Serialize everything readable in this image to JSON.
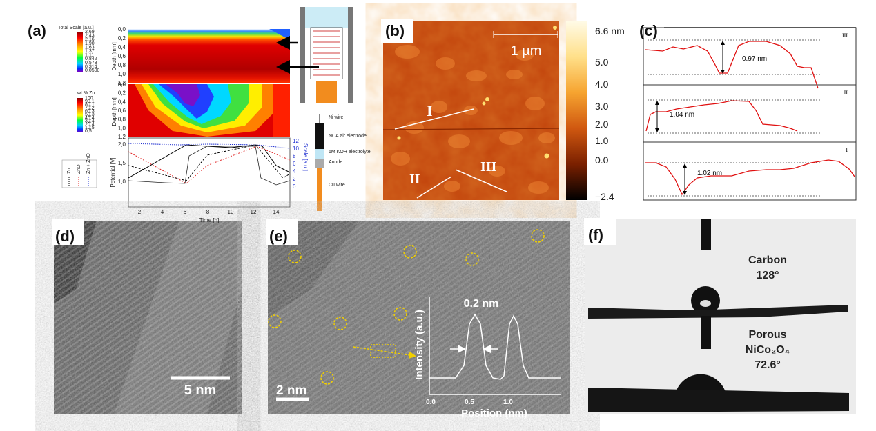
{
  "panel_labels": [
    "(a)",
    "(b)",
    "(c)",
    "(d)",
    "(e)",
    "(f)"
  ],
  "a": {
    "total_scale": {
      "title": "Total Scale [a.u.]",
      "ticks": [
        "2,69",
        "2,43",
        "2,16",
        "1,90",
        "1,63",
        "1,37",
        "1,11",
        "0,842",
        "0,578",
        "0,314",
        "0,0500"
      ]
    },
    "zn_scale": {
      "title": "wt.% Zn",
      "ticks": [
        "100",
        "90,1",
        "80,1",
        "70,2",
        "60,3",
        "50,3",
        "40,4",
        "30,4",
        "20,4",
        "10,5",
        "0,5"
      ]
    },
    "depth_axis": {
      "title": "Depth [mm]",
      "ticks": [
        "0,0",
        "0,2",
        "0,4",
        "0,6",
        "0,8",
        "1,0",
        "1,2"
      ]
    },
    "potential_axis": {
      "title": "Potential [V]",
      "ticks": [
        "1,0",
        "1,5",
        "2,0"
      ]
    },
    "scale_axis": {
      "title": "Scale [a.u.]",
      "ticks": [
        "0",
        "2",
        "4",
        "6",
        "8",
        "10",
        "12"
      ]
    },
    "time_axis": {
      "title": "Time [h]",
      "ticks": [
        "2",
        "4",
        "6",
        "8",
        "10",
        "12",
        "14"
      ]
    },
    "legend": [
      "Zn",
      "ZnO",
      "Zn + ZnO"
    ],
    "schematic_labels": [
      "Ni wire",
      "NCA air electrode",
      "6M KOH electrolyte",
      "Anode",
      "Cu wire"
    ]
  },
  "b": {
    "scale_bar": "1 µm",
    "line_labels": [
      "I",
      "II",
      "III"
    ],
    "colorbar_ticks": [
      "6.6 nm",
      "5.0",
      "4.0",
      "3.0",
      "2.0",
      "1.0",
      "0.0",
      "−2.4"
    ]
  },
  "c": {
    "profiles": [
      {
        "label": "III",
        "height": "0.97 nm"
      },
      {
        "label": "II",
        "height": "1.04 nm"
      },
      {
        "label": "I",
        "height": "1.02 nm"
      }
    ]
  },
  "d": {
    "scale_bar": "5 nm"
  },
  "e": {
    "scale_bar": "2 nm",
    "peak_width": "0.2 nm",
    "y_label": "Intensity (a.u.)",
    "x_label": "Position (nm)",
    "x_ticks": [
      "0.0",
      "0.5",
      "1.0"
    ]
  },
  "f": {
    "top_label": [
      "Carbon",
      "128°"
    ],
    "bottom_label": [
      "Porous",
      "NiCo₂O₄",
      "72.6°"
    ]
  }
}
